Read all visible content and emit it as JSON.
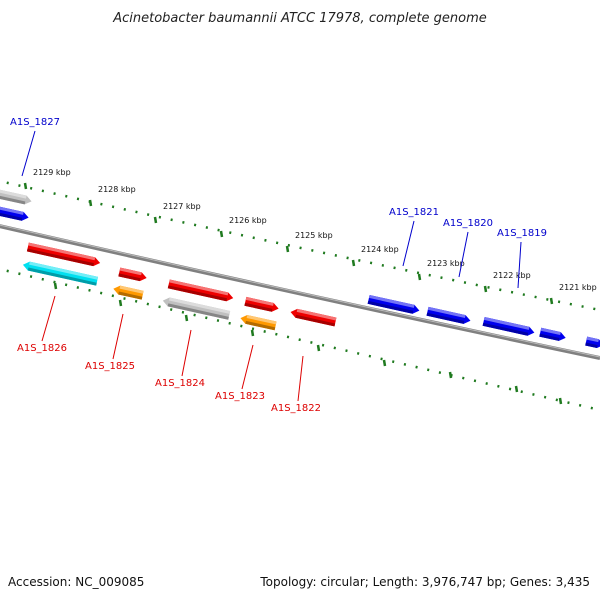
{
  "title": "Acinetobacter baumannii ATCC 17978, complete genome",
  "footer": {
    "accession": "Accession: NC_009085",
    "topology": "Topology: circular; Length: 3,976,747 bp; Genes: 3,435"
  },
  "colors": {
    "backbone": "#808080",
    "tick": "#1f7a1f",
    "forward_label": "#0000cc",
    "reverse_label": "#dd0000"
  },
  "kbp_labels": [
    "2129 kbp",
    "2128 kbp",
    "2127 kbp",
    "2126 kbp",
    "2125 kbp",
    "2124 kbp",
    "2123 kbp",
    "2122 kbp",
    "2121 kbp"
  ],
  "forward_genes": [
    {
      "label": "A1S_1827",
      "color": "#0000ee"
    },
    {
      "label": "A1S_1821",
      "color": "#0000ee"
    },
    {
      "label": "A1S_1820",
      "color": "#0000ee"
    },
    {
      "label": "A1S_1819",
      "color": "#0000ee"
    }
  ],
  "reverse_genes": [
    {
      "label": "A1S_1826",
      "color": "#00e0f0"
    },
    {
      "label": "A1S_1825",
      "color": "#ff9900"
    },
    {
      "label": "A1S_1824",
      "color": "#c0c0c0"
    },
    {
      "label": "A1S_1823",
      "color": "#ff9900"
    },
    {
      "label": "A1S_1822",
      "color": "#ee0000"
    }
  ],
  "unlabeled_genes": [
    {
      "name": "gene-arrow-gray-top",
      "color": "#c0c0c0"
    },
    {
      "name": "gene-arrow-blue-left",
      "color": "#0000ee"
    },
    {
      "name": "gene-arrow-red-1",
      "color": "#ee0000"
    },
    {
      "name": "gene-arrow-red-2",
      "color": "#ee0000"
    },
    {
      "name": "gene-arrow-red-3",
      "color": "#ee0000"
    },
    {
      "name": "gene-arrow-red-4",
      "color": "#ee0000"
    },
    {
      "name": "gene-arrow-blue-1",
      "color": "#0000ee"
    },
    {
      "name": "gene-arrow-blue-edge",
      "color": "#0000ee"
    }
  ]
}
